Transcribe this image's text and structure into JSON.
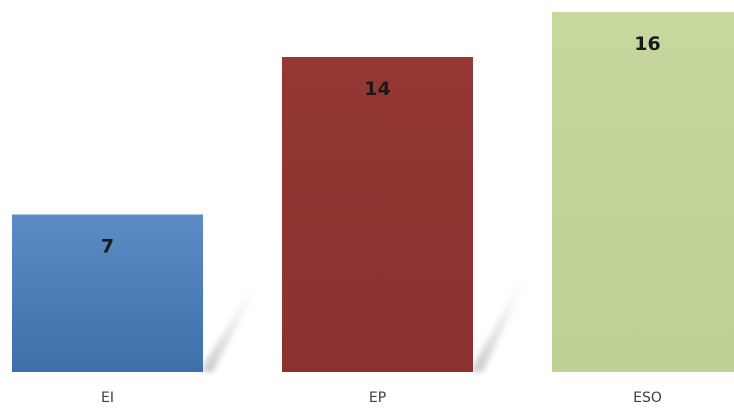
{
  "chart_data": {
    "type": "bar",
    "categories": [
      "EI",
      "EP",
      "ESO"
    ],
    "values": [
      7,
      14,
      16
    ],
    "title": "",
    "xlabel": "",
    "ylabel": "",
    "ylim": [
      0,
      16
    ],
    "grid": false,
    "legend": "none",
    "colors": [
      "#4f81bd",
      "#953735",
      "#c3d69b"
    ],
    "data_labels": [
      "7",
      "14",
      "16"
    ]
  }
}
